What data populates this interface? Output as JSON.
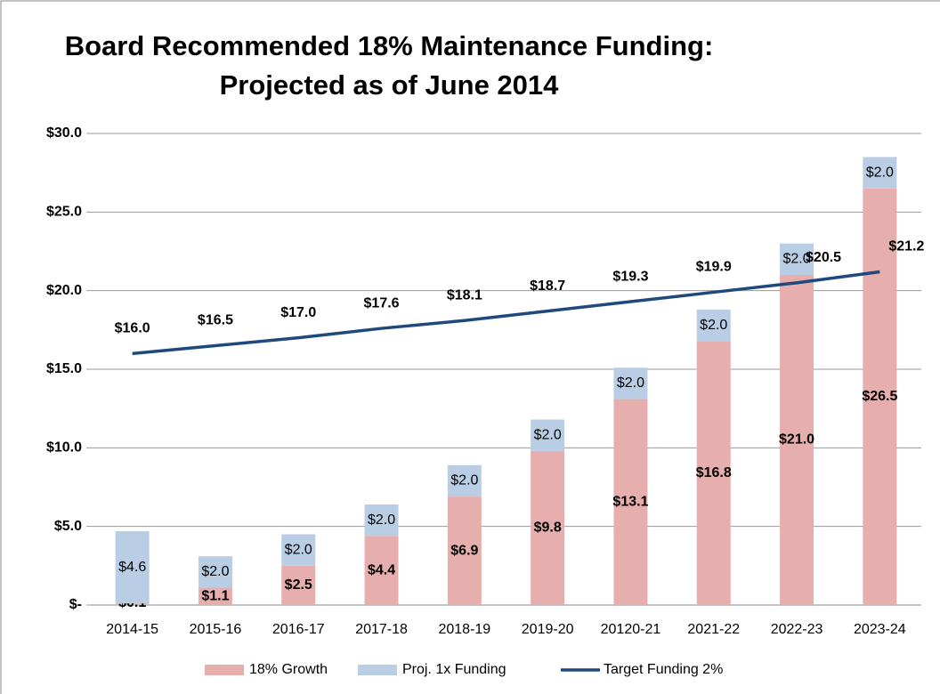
{
  "chart_data": {
    "type": "bar",
    "title": "Board Recommended 18% Maintenance Funding:\nProjected as of June 2014",
    "categories": [
      "2014-15",
      "2015-16",
      "2016-17",
      "2017-18",
      "2018-19",
      "2019-20",
      "20120-21",
      "2021-22",
      "2022-23",
      "2023-24"
    ],
    "series": [
      {
        "name": "18% Growth",
        "color": "#e6aead",
        "stack": true,
        "values": [
          0.1,
          1.1,
          2.5,
          4.4,
          6.9,
          9.8,
          13.1,
          16.8,
          21.0,
          26.5
        ],
        "value_labels": [
          "$0.1",
          "$1.1",
          "$2.5",
          "$4.4",
          "$6.9",
          "$9.8",
          "$13.1",
          "$16.8",
          "$21.0",
          "$26.5"
        ]
      },
      {
        "name": "Proj. 1x Funding",
        "color": "#b9cde5",
        "stack": true,
        "values": [
          4.6,
          2.0,
          2.0,
          2.0,
          2.0,
          2.0,
          2.0,
          2.0,
          2.0,
          2.0
        ],
        "value_labels": [
          "$4.6",
          "$2.0",
          "$2.0",
          "$2.0",
          "$2.0",
          "$2.0",
          "$2.0",
          "$2.0",
          "$2.0",
          "$2.0"
        ]
      },
      {
        "name": "Target Funding 2%",
        "color": "#1f497d",
        "type": "line",
        "values": [
          16.0,
          16.5,
          17.0,
          17.6,
          18.1,
          18.7,
          19.3,
          19.9,
          20.5,
          21.2
        ],
        "value_labels": [
          "$16.0",
          "$16.5",
          "$17.0",
          "$17.6",
          "$18.1",
          "$18.7",
          "$19.3",
          "$19.9",
          "$20.5",
          "$21.2"
        ]
      }
    ],
    "ylim": [
      0,
      30
    ],
    "yticks": [
      {
        "value": 0,
        "label": "$-"
      },
      {
        "value": 5,
        "label": "$5.0"
      },
      {
        "value": 10,
        "label": "$10.0"
      },
      {
        "value": 15,
        "label": "$15.0"
      },
      {
        "value": 20,
        "label": "$20.0"
      },
      {
        "value": 25,
        "label": "$25.0"
      },
      {
        "value": 30,
        "label": "$30.0"
      }
    ],
    "grid": true,
    "legend": "bottom"
  }
}
